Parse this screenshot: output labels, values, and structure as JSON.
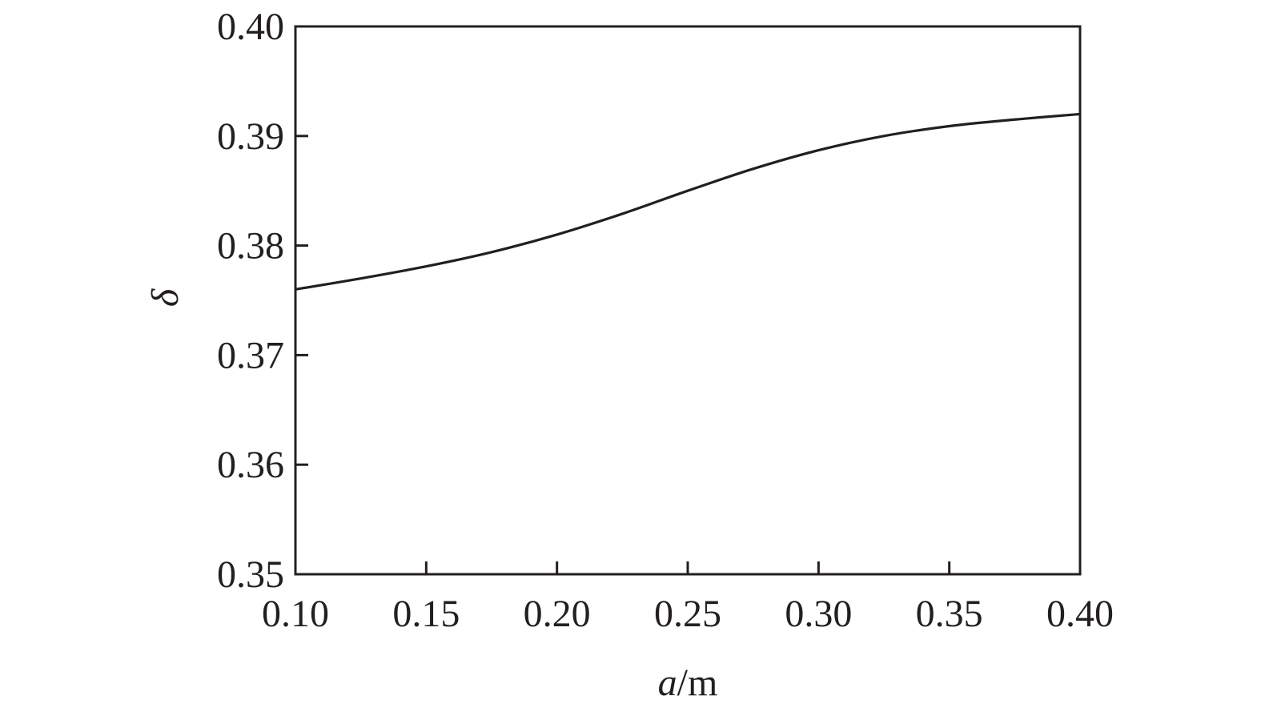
{
  "chart_data": {
    "type": "line",
    "title": "",
    "xlabel": "a/m",
    "xlabel_italic_part": "a",
    "xlabel_unit_part": "/m",
    "ylabel": "δ",
    "xlim": [
      0.1,
      0.4
    ],
    "ylim": [
      0.35,
      0.4
    ],
    "grid": false,
    "legend": null,
    "x_ticks": [
      "0.10",
      "0.15",
      "0.20",
      "0.25",
      "0.30",
      "0.35",
      "0.40"
    ],
    "y_ticks": [
      "0.35",
      "0.36",
      "0.37",
      "0.38",
      "0.39",
      "0.40"
    ],
    "series": [
      {
        "name": "δ",
        "color": "#231f20",
        "x": [
          0.1,
          0.125,
          0.15,
          0.175,
          0.2,
          0.225,
          0.25,
          0.275,
          0.3,
          0.325,
          0.35,
          0.375,
          0.4
        ],
        "values": [
          0.376,
          0.377,
          0.3781,
          0.3794,
          0.381,
          0.3829,
          0.385,
          0.387,
          0.3887,
          0.39,
          0.3909,
          0.3915,
          0.392
        ]
      }
    ]
  }
}
